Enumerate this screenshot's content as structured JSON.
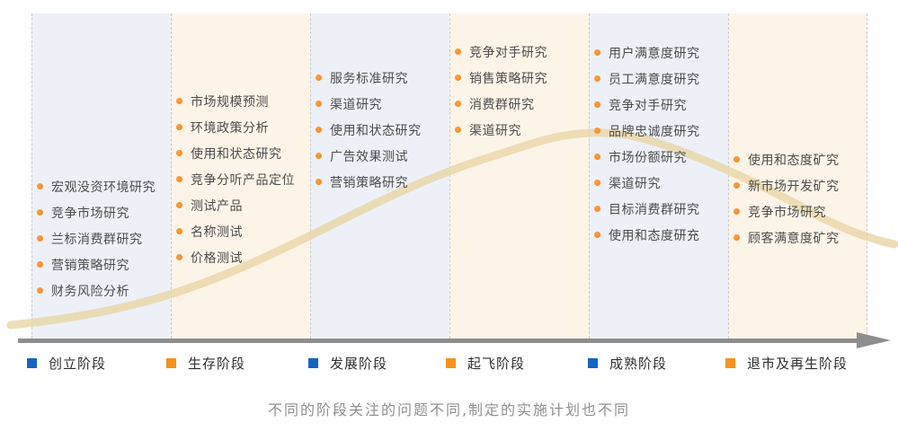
{
  "caption": "不同的阶段关注的问题不同,制定的实施计划也不同",
  "colors": {
    "stage_blue": "#1564c4",
    "stage_orange": "#f5921e",
    "column_blue_bg": "#edf1f7",
    "column_cream_bg": "#fdf4e8",
    "curve": "#e8d6a6",
    "bullet": "#f6861f",
    "axis": "#8d8d8d"
  },
  "stages": [
    {
      "name": "创立阶段",
      "swatch_color": "#1564c4",
      "items": [
        "宏观没资环境研究",
        "竞争市场研究",
        "兰标消费群研究",
        "营销策略研究",
        "财务风险分析"
      ]
    },
    {
      "name": "生存阶段",
      "swatch_color": "#f5921e",
      "items": [
        "市场规模预测",
        "环境政策分析",
        "使用和状态研究",
        "竞争分听产品定位",
        "测试产品",
        "名称测试",
        "价格测试"
      ]
    },
    {
      "name": "发展阶段",
      "swatch_color": "#1564c4",
      "items": [
        "服务标准研究",
        "渠道研究",
        "使用和状态研究",
        "广告效果测试",
        "营销策略研究"
      ]
    },
    {
      "name": "起飞阶段",
      "swatch_color": "#f5921e",
      "items": [
        "竞争对手研究",
        "销售策略研究",
        "消费群研究",
        "渠道研究"
      ]
    },
    {
      "name": "成熟阶段",
      "swatch_color": "#1564c4",
      "items": [
        "用户满意度研究",
        "员工满意度研究",
        "竞争对手研究",
        "品牌忠诚度研究",
        "市场份额研究",
        "渠道研究",
        "目标消费群研究",
        "使用和态度研充"
      ]
    },
    {
      "name": "退市及再生阶段",
      "swatch_color": "#f5921e",
      "items": [
        "使用和态度矿究",
        "新市场开发矿究",
        "竞争市场研究",
        "顾客满意度矿究"
      ]
    }
  ]
}
